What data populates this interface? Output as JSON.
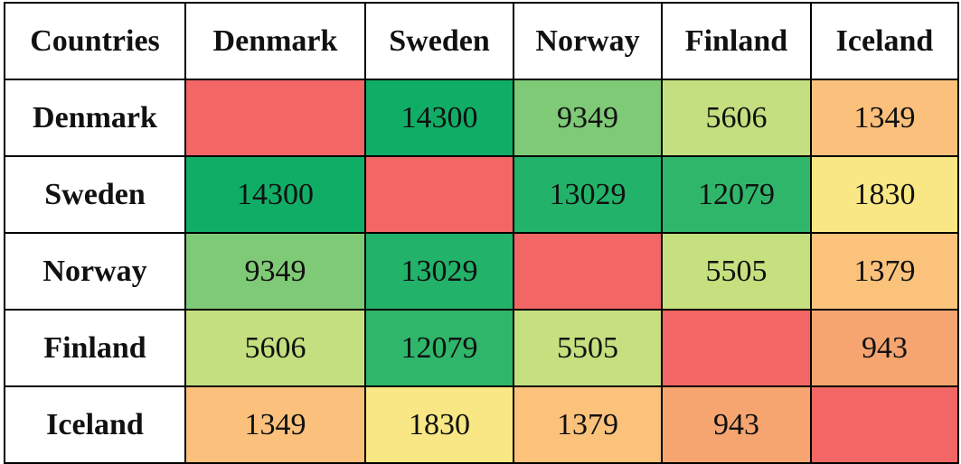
{
  "chart_data": {
    "type": "heatmap",
    "corner_label": "Countries",
    "columns": [
      "Denmark",
      "Sweden",
      "Norway",
      "Finland",
      "Iceland"
    ],
    "rows": [
      "Denmark",
      "Sweden",
      "Norway",
      "Finland",
      "Iceland"
    ],
    "values": [
      [
        null,
        14300,
        9349,
        5606,
        1349
      ],
      [
        14300,
        null,
        13029,
        12079,
        1830
      ],
      [
        9349,
        13029,
        null,
        5505,
        1379
      ],
      [
        5606,
        12079,
        5505,
        null,
        943
      ],
      [
        1349,
        1830,
        1379,
        943,
        null
      ]
    ],
    "color_scale": {
      "empty": "#f26666",
      "stops": [
        {
          "value": 943,
          "color": "#f6a570"
        },
        {
          "value": 1349,
          "color": "#fbc07c"
        },
        {
          "value": 1830,
          "color": "#f8e784"
        },
        {
          "value": 5505,
          "color": "#c6e07f"
        },
        {
          "value": 9349,
          "color": "#7fca76"
        },
        {
          "value": 12079,
          "color": "#2fb66a"
        },
        {
          "value": 14300,
          "color": "#10ad67"
        }
      ]
    }
  }
}
